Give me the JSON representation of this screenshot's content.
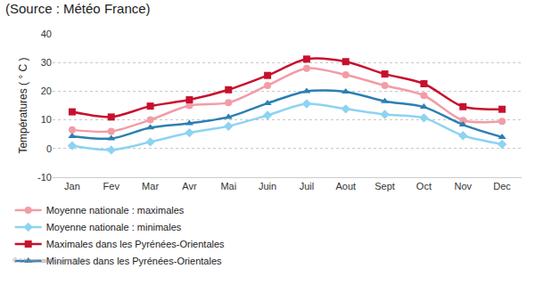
{
  "chart_data": {
    "type": "line",
    "title": "(Source : Météo France)",
    "y_label": "Températures ( ° C )",
    "annotations": [
      "© Linternaute.com 2014"
    ],
    "categories": [
      "Jan",
      "Fev",
      "Mar",
      "Avr",
      "Mai",
      "Juin",
      "Juil",
      "Aout",
      "Sept",
      "Oct",
      "Nov",
      "Dec"
    ],
    "series": [
      {
        "name": "Moyenne nationale : maximales",
        "color": "#f29ca6",
        "marker": "circle",
        "line_style": "solid",
        "values": [
          6.5,
          6,
          10,
          15,
          16,
          22,
          28,
          25.7,
          22,
          18.5,
          9.8,
          9.5
        ]
      },
      {
        "name": "Moyenne nationale : minimales",
        "color": "#8dd3f2",
        "marker": "diamond",
        "line_style": "solid",
        "values": [
          1,
          -0.5,
          2.3,
          5.5,
          7.8,
          11.6,
          15.6,
          13.8,
          11.9,
          10.7,
          4.5,
          1.5
        ]
      },
      {
        "name": "Maximales dans les Pyrénées-Orientales",
        "color": "#c8102e",
        "marker": "square",
        "line_style": "solid",
        "values": [
          12.8,
          11,
          14.8,
          17,
          20.5,
          25.5,
          31.2,
          30.3,
          26,
          22.6,
          14.6,
          13.7
        ]
      },
      {
        "name": "Minimales dans les Pyrénées-Orientales",
        "color": "#2b7fb3",
        "marker": "triangle",
        "line_style": "solid",
        "values": [
          4.3,
          3.5,
          7.3,
          8.8,
          11,
          15.8,
          20,
          19.8,
          16.5,
          14.5,
          8.3,
          4
        ]
      }
    ],
    "ylim": [
      -10,
      40
    ],
    "yticks": [
      -10,
      0,
      10,
      20,
      30,
      40
    ],
    "grid": true,
    "legend": "bottom"
  }
}
